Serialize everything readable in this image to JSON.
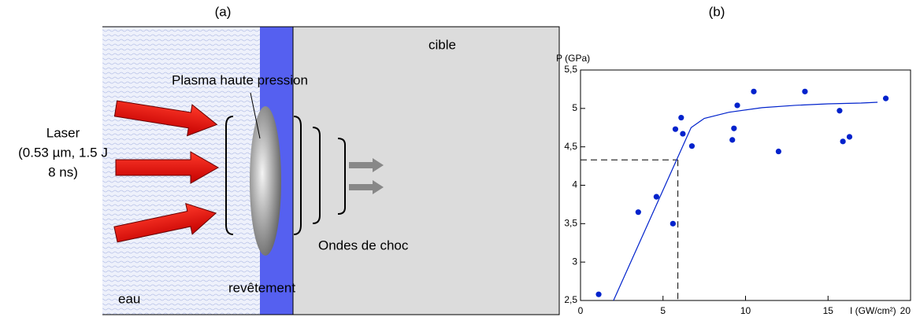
{
  "diagram": {
    "title": "(a)",
    "target": "cible",
    "plasma": "Plasma haute pression",
    "laser": [
      "Laser",
      "(0.53 µm, 1.5 J",
      "8 ns)"
    ],
    "shock": "Ondes de choc",
    "coating": "revêtement",
    "water": "eau"
  },
  "chart_data": {
    "type": "scatter",
    "title": "(b)",
    "y_label": "P (GPa)",
    "x_label": "I (GW/cm²)",
    "xlim": [
      0,
      20
    ],
    "xticks": [
      0,
      5,
      10,
      15,
      20
    ],
    "ylim": [
      2.5,
      5.5
    ],
    "yticks": [
      {
        "value": 2.5,
        "label": "2,5"
      },
      3,
      {
        "value": 3.5,
        "label": "3,5"
      },
      4,
      {
        "value": 4.5,
        "label": "4,5"
      },
      5,
      {
        "value": 5.5,
        "label": "5,5"
      }
    ],
    "series": [
      {
        "mode": "markers",
        "color": "#0022cc",
        "x": [
          1.1,
          3.5,
          4.6,
          5.6,
          5.75,
          6.1,
          6.2,
          6.75,
          9.2,
          9.3,
          9.5,
          10.5,
          13.6,
          12.0,
          15.7,
          15.9,
          16.3,
          18.5
        ],
        "values": [
          2.58,
          3.65,
          3.85,
          3.5,
          4.73,
          4.88,
          4.67,
          4.51,
          4.59,
          4.74,
          5.04,
          5.22,
          5.22,
          4.44,
          4.97,
          4.57,
          4.63,
          5.13
        ]
      },
      {
        "mode": "line",
        "color": "#0022cc",
        "x": [
          2,
          6.7,
          7.5,
          9,
          11,
          13,
          15,
          17,
          18
        ],
        "values": [
          2.5,
          4.75,
          4.87,
          4.95,
          5.01,
          5.04,
          5.06,
          5.07,
          5.08
        ]
      }
    ],
    "reference": {
      "x": 5.9,
      "y": 4.33
    }
  }
}
